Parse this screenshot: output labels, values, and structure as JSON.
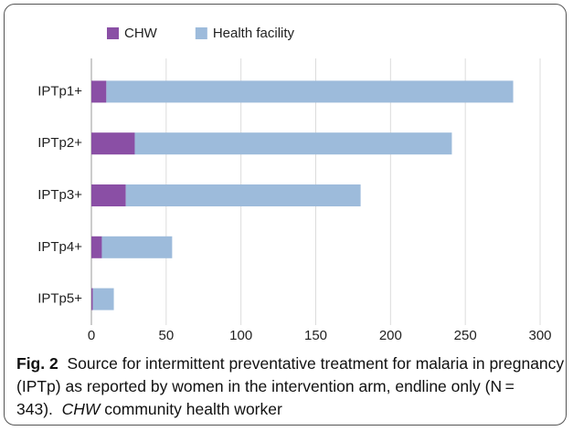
{
  "chart_data": {
    "type": "stacked-barh",
    "categories": [
      "IPTp1+",
      "IPTp2+",
      "IPTp3+",
      "IPTp4+",
      "IPTp5+"
    ],
    "series": [
      {
        "name": "CHW",
        "color": "#8a4fa5",
        "values": [
          10,
          29,
          23,
          7,
          1
        ]
      },
      {
        "name": "Health facility",
        "color": "#9dbbdb",
        "values": [
          272,
          212,
          157,
          47,
          14
        ]
      }
    ],
    "xlim": [
      0,
      300
    ],
    "xticks": [
      0,
      50,
      100,
      150,
      200,
      250,
      300
    ],
    "grid": true,
    "legend": "top"
  },
  "caption": {
    "label": "Fig. 2",
    "text": "Source for intermittent preventative treatment for malaria in pregnancy (IPTp) as reported by women in the intervention arm, endline only (N = 343).",
    "abbr": "CHW",
    "abbr_def": "community health worker"
  }
}
